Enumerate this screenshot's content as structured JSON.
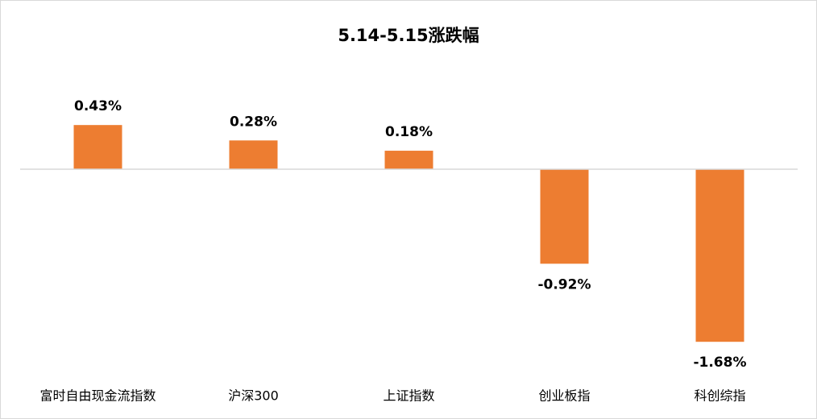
{
  "chart_data": {
    "type": "bar",
    "title": "5.14-5.15涨跌幅",
    "categories": [
      "富时自由现金流指数",
      "沪深300",
      "上证指数",
      "创业板指",
      "科创综指"
    ],
    "values": [
      0.43,
      0.28,
      0.18,
      -0.92,
      -1.68
    ],
    "value_labels": [
      "0.43%",
      "0.28%",
      "0.18%",
      "-0.92%",
      "-1.68%"
    ],
    "color": "#ed7d31",
    "ylim": [
      -2,
      0.8
    ]
  }
}
